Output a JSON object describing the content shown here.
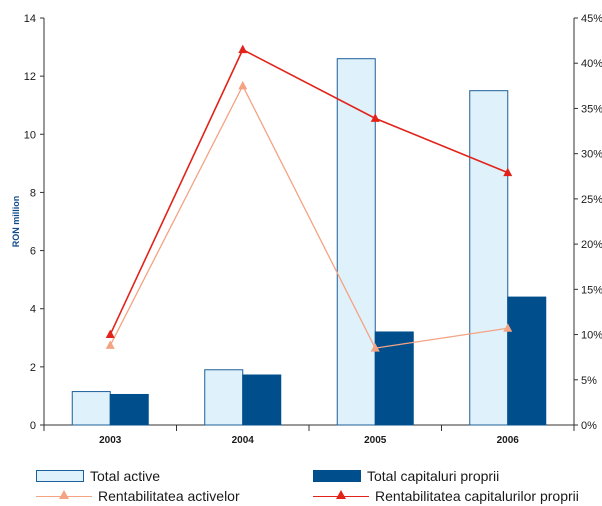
{
  "chart_data": {
    "type": "bar",
    "categories": [
      "2003",
      "2004",
      "2005",
      "2006"
    ],
    "ylabel": "RON million",
    "ylim": [
      0,
      14
    ],
    "yticks": [
      0,
      2,
      4,
      6,
      8,
      10,
      12,
      14
    ],
    "y2lim": [
      0,
      45
    ],
    "y2ticks": [
      "0%",
      "5%",
      "10%",
      "15%",
      "20%",
      "25%",
      "30%",
      "35%",
      "40%",
      "45%"
    ],
    "bar_series": [
      {
        "name": "Total active",
        "values": [
          1.15,
          1.9,
          12.6,
          11.5
        ],
        "color": "#dff1fb",
        "stroke": "#1d5f99"
      },
      {
        "name": "Total capitaluri proprii",
        "values": [
          1.05,
          1.72,
          3.2,
          4.4
        ],
        "color": "#004f8c",
        "stroke": "#004f8c"
      }
    ],
    "line_series": [
      {
        "name": "Rentabilitatea activelor",
        "axis": "right",
        "unit": "%",
        "values": [
          8.8,
          37.5,
          8.5,
          10.7
        ],
        "color": "#f4a383"
      },
      {
        "name": "Rentabilitatea capitalurilor proprii",
        "axis": "right",
        "unit": "%",
        "values": [
          10.0,
          41.5,
          33.9,
          27.9
        ],
        "color": "#e2231a"
      }
    ],
    "grid": false,
    "legend_position": "bottom"
  }
}
